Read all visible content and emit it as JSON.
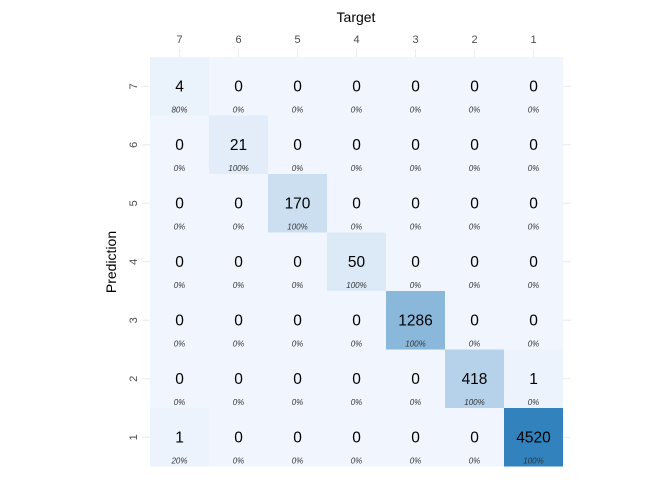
{
  "chart_data": {
    "type": "heatmap",
    "xlabel": "Target",
    "ylabel": "Prediction",
    "x_categories": [
      "7",
      "6",
      "5",
      "4",
      "3",
      "2",
      "1"
    ],
    "y_categories": [
      "7",
      "6",
      "5",
      "4",
      "3",
      "2",
      "1"
    ],
    "counts": [
      [
        4,
        0,
        0,
        0,
        0,
        0,
        0
      ],
      [
        0,
        21,
        0,
        0,
        0,
        0,
        0
      ],
      [
        0,
        0,
        170,
        0,
        0,
        0,
        0
      ],
      [
        0,
        0,
        0,
        50,
        0,
        0,
        0
      ],
      [
        0,
        0,
        0,
        0,
        1286,
        0,
        0
      ],
      [
        0,
        0,
        0,
        0,
        0,
        418,
        1
      ],
      [
        1,
        0,
        0,
        0,
        0,
        0,
        4520
      ]
    ],
    "percentages": [
      [
        "80%",
        "0%",
        "0%",
        "0%",
        "0%",
        "0%",
        "0%"
      ],
      [
        "0%",
        "100%",
        "0%",
        "0%",
        "0%",
        "0%",
        "0%"
      ],
      [
        "0%",
        "0%",
        "100%",
        "0%",
        "0%",
        "0%",
        "0%"
      ],
      [
        "0%",
        "0%",
        "0%",
        "100%",
        "0%",
        "0%",
        "0%"
      ],
      [
        "0%",
        "0%",
        "0%",
        "0%",
        "100%",
        "0%",
        "0%"
      ],
      [
        "0%",
        "0%",
        "0%",
        "0%",
        "0%",
        "100%",
        "0%"
      ],
      [
        "20%",
        "0%",
        "0%",
        "0%",
        "0%",
        "0%",
        "100%"
      ]
    ],
    "x_axis_position": "top",
    "grid": true,
    "legend": "none",
    "colors": {
      "low": "#f0f5fe",
      "high": "#3182bd",
      "grid": "#ebebeb"
    }
  }
}
